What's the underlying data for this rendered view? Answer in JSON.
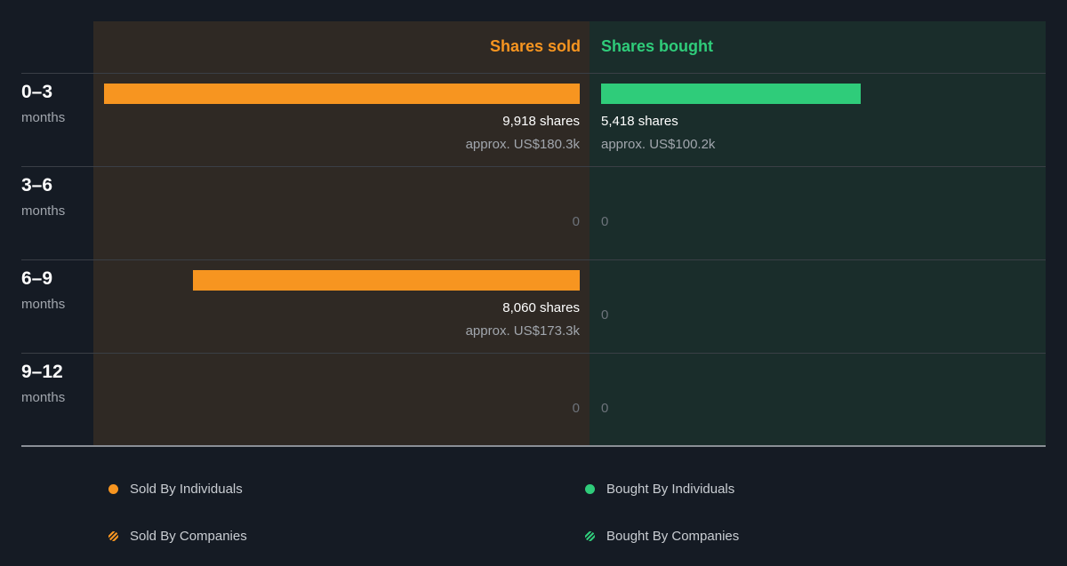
{
  "colors": {
    "sold": "#f79520",
    "bought": "#2fcc7a",
    "sold_panel": "#2f2924",
    "bought_panel": "#1a2d2b",
    "background": "#151b24"
  },
  "chart_data": {
    "type": "bar",
    "orientation": "horizontal-diverging",
    "column_headers": {
      "sold": "Shares sold",
      "bought": "Shares bought"
    },
    "max_value": 9918,
    "rows": [
      {
        "range": "0–3",
        "unit": "months",
        "sold": {
          "value": 9918,
          "shares_label": "9,918 shares",
          "approx_label": "approx. US$180.3k"
        },
        "bought": {
          "value": 5418,
          "shares_label": "5,418 shares",
          "approx_label": "approx. US$100.2k"
        }
      },
      {
        "range": "3–6",
        "unit": "months",
        "sold": {
          "value": 0,
          "zero_label": "0"
        },
        "bought": {
          "value": 0,
          "zero_label": "0"
        }
      },
      {
        "range": "6–9",
        "unit": "months",
        "sold": {
          "value": 8060,
          "shares_label": "8,060 shares",
          "approx_label": "approx. US$173.3k"
        },
        "bought": {
          "value": 0,
          "zero_label": "0"
        }
      },
      {
        "range": "9–12",
        "unit": "months",
        "sold": {
          "value": 0,
          "zero_label": "0"
        },
        "bought": {
          "value": 0,
          "zero_label": "0"
        }
      }
    ],
    "legend": [
      {
        "label": "Sold By Individuals",
        "marker": "solid-dot",
        "color": "#f79520"
      },
      {
        "label": "Bought By Individuals",
        "marker": "solid-dot",
        "color": "#2fcc7a"
      },
      {
        "label": "Sold By Companies",
        "marker": "striped-dot",
        "color": "#f79520"
      },
      {
        "label": "Bought By Companies",
        "marker": "striped-dot",
        "color": "#2fcc7a"
      }
    ]
  }
}
